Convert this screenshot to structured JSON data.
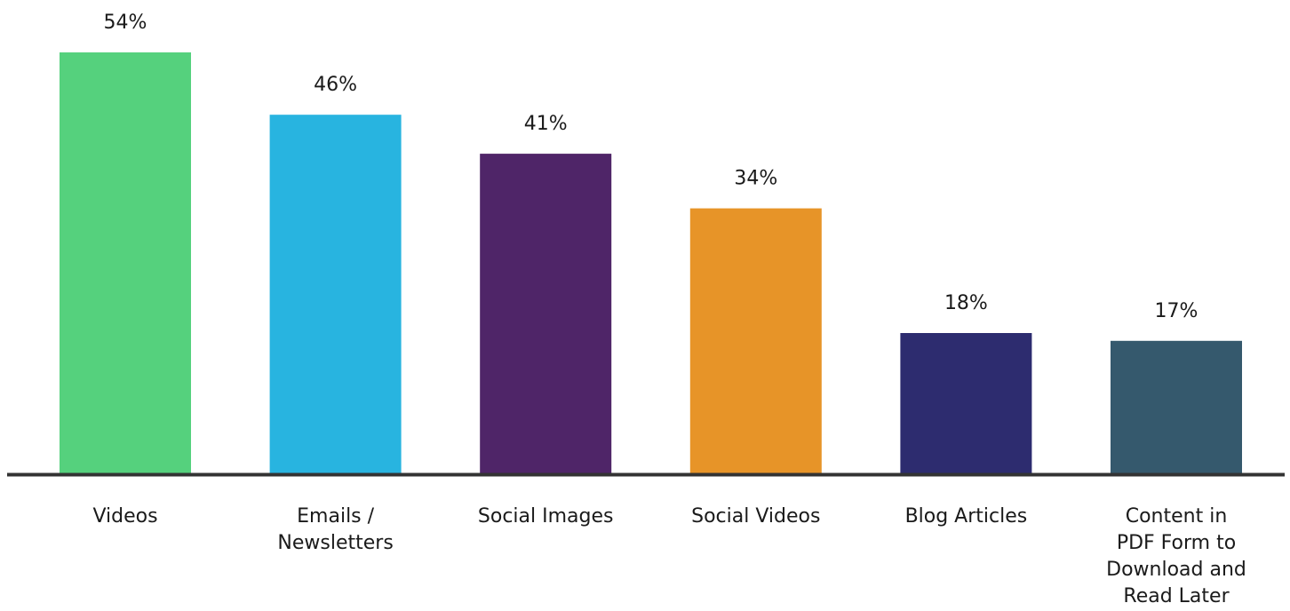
{
  "chart_data": {
    "type": "bar",
    "categories": [
      "Videos",
      "Emails / Newsletters",
      "Social Images",
      "Social Videos",
      "Blog Articles",
      "Content in PDF Form to Download and Read Later"
    ],
    "category_lines": [
      [
        "Videos"
      ],
      [
        "Emails /",
        "Newsletters"
      ],
      [
        "Social Images"
      ],
      [
        "Social Videos"
      ],
      [
        "Blog Articles"
      ],
      [
        "Content in",
        "PDF Form to",
        "Download and",
        "Read Later"
      ]
    ],
    "values": [
      54,
      46,
      41,
      34,
      18,
      17
    ],
    "data_labels": [
      "54%",
      "46%",
      "41%",
      "34%",
      "18%",
      "17%"
    ],
    "colors": [
      "#55d17d",
      "#28b4e0",
      "#4f2568",
      "#e79428",
      "#2d2c6f",
      "#35596d"
    ],
    "axis_color": "#333333",
    "title": "",
    "xlabel": "",
    "ylabel": "",
    "ylim": [
      0,
      54
    ],
    "grid": false,
    "legend": "none"
  }
}
